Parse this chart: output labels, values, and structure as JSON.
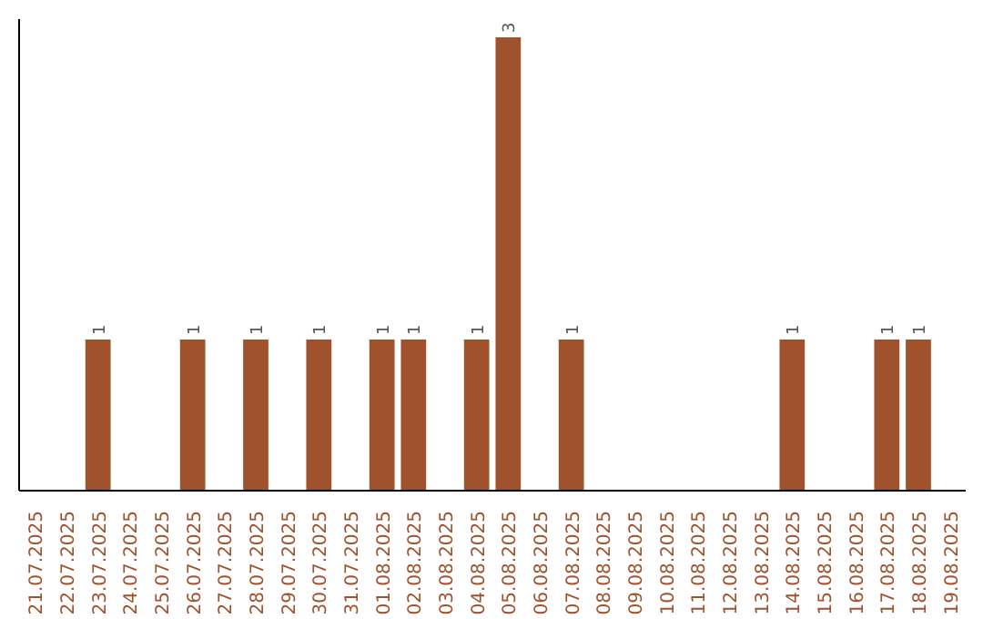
{
  "chart_data": {
    "type": "bar",
    "categories": [
      "21.07.2025",
      "22.07.2025",
      "23.07.2025",
      "24.07.2025",
      "25.07.2025",
      "26.07.2025",
      "27.07.2025",
      "28.07.2025",
      "29.07.2025",
      "30.07.2025",
      "31.07.2025",
      "01.08.2025",
      "02.08.2025",
      "03.08.2025",
      "04.08.2025",
      "05.08.2025",
      "06.08.2025",
      "07.08.2025",
      "08.08.2025",
      "09.08.2025",
      "10.08.2025",
      "11.08.2025",
      "12.08.2025",
      "13.08.2025",
      "14.08.2025",
      "15.08.2025",
      "16.08.2025",
      "17.08.2025",
      "18.08.2025",
      "19.08.2025"
    ],
    "values": [
      0,
      0,
      1,
      0,
      0,
      1,
      0,
      1,
      0,
      1,
      0,
      1,
      1,
      0,
      1,
      3,
      0,
      1,
      0,
      0,
      0,
      0,
      0,
      0,
      1,
      0,
      0,
      1,
      1,
      0
    ],
    "value_labels": [
      null,
      null,
      "1",
      null,
      null,
      "1",
      null,
      "1",
      null,
      "1",
      null,
      "1",
      "1",
      null,
      "1",
      "3",
      null,
      "1",
      null,
      null,
      null,
      null,
      null,
      null,
      "1",
      null,
      null,
      "1",
      "1",
      null
    ],
    "color": "#a0522d",
    "grid": false,
    "tick_labels": "x"
  }
}
